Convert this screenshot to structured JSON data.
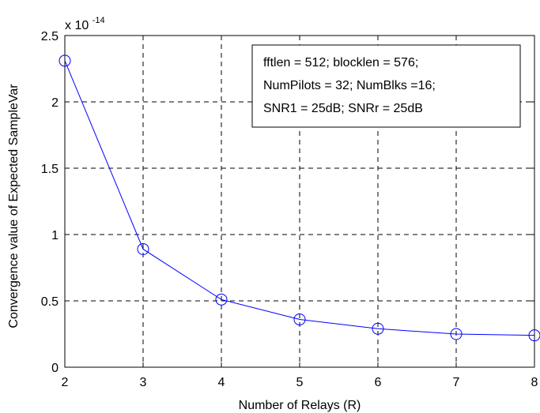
{
  "chart_data": {
    "type": "line",
    "xlabel": "Number of Relays (R)",
    "ylabel": "Convergence value of  Expected SampleVar",
    "scale_label": {
      "base": "x 10",
      "exponent": "-14"
    },
    "x": [
      2,
      3,
      4,
      5,
      6,
      7,
      8
    ],
    "series": [
      {
        "values": [
          2.31,
          0.89,
          0.51,
          0.36,
          0.29,
          0.25,
          0.24
        ],
        "color": "#0000ff",
        "marker": "circle"
      }
    ],
    "xlim": [
      2,
      8
    ],
    "ylim": [
      0,
      2.5
    ],
    "xticks": [
      2,
      3,
      4,
      5,
      6,
      7,
      8
    ],
    "yticks": [
      0,
      0.5,
      1,
      1.5,
      2,
      2.5
    ],
    "ytick_labels": [
      "0",
      "0.5",
      "1",
      "1.5",
      "2",
      "2.5"
    ],
    "grid": true,
    "annotation": {
      "lines": [
        "fftlen = 512; blocklen = 576;",
        "NumPilots = 32; NumBlks =16;",
        "SNR1 = 25dB; SNRr = 25dB"
      ],
      "placement": "top-right"
    }
  }
}
